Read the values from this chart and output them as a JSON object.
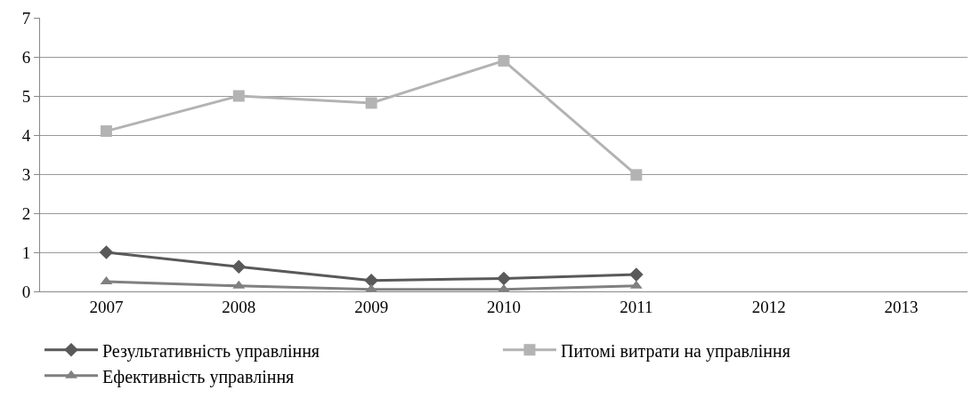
{
  "chart_data": {
    "type": "line",
    "categories": [
      "2007",
      "2008",
      "2009",
      "2010",
      "2011",
      "2012",
      "2013"
    ],
    "series": [
      {
        "name": "Результативність управління",
        "color": "#595959",
        "marker": "diamond",
        "values": [
          1.0,
          0.63,
          0.28,
          0.33,
          0.43,
          null,
          null
        ]
      },
      {
        "name": "Питомі витрати на управління",
        "color": "#b3b3b3",
        "marker": "square",
        "values": [
          4.1,
          5.0,
          4.82,
          5.9,
          2.98,
          null,
          null
        ]
      },
      {
        "name": "Ефективність управління",
        "color": "#808080",
        "marker": "triangle",
        "values": [
          0.25,
          0.14,
          0.05,
          0.05,
          0.14,
          null,
          null
        ]
      }
    ],
    "ylim": [
      0,
      7
    ],
    "yticks": [
      0,
      1,
      2,
      3,
      4,
      5,
      6,
      7
    ],
    "grid": "y",
    "legend": "bottom",
    "line_style": "solid"
  }
}
